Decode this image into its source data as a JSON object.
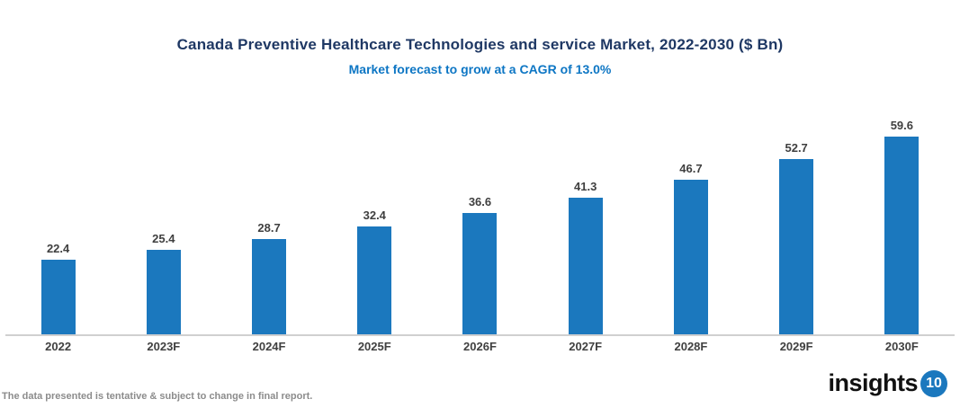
{
  "chart_data": {
    "type": "bar",
    "title": "Canada Preventive Healthcare Technologies and service Market, 2022-2030 ($ Bn)",
    "subtitle": "Market forecast to grow at a CAGR of 13.0%",
    "categories": [
      "2022",
      "2023F",
      "2024F",
      "2025F",
      "2026F",
      "2027F",
      "2028F",
      "2029F",
      "2030F"
    ],
    "values": [
      22.4,
      25.4,
      28.7,
      32.4,
      36.6,
      41.3,
      46.7,
      52.7,
      59.6
    ],
    "xlabel": "",
    "ylabel": "",
    "ylim": [
      0,
      65
    ],
    "grid": false,
    "legend": false,
    "value_labels": true,
    "bar_color": "#1b78be"
  },
  "colors": {
    "bar": "#1b78be",
    "title": "#1f3864",
    "subtitle": "#0d76c4",
    "value_label": "#3f3f3f",
    "axis_line": "#d0d0d0",
    "footer_text": "#8c8c8c",
    "logo_badge": "#1b78be"
  },
  "footer": {
    "disclaimer": "The data presented is tentative & subject to change in final report."
  },
  "logo": {
    "text": "insights",
    "badge": "10"
  }
}
